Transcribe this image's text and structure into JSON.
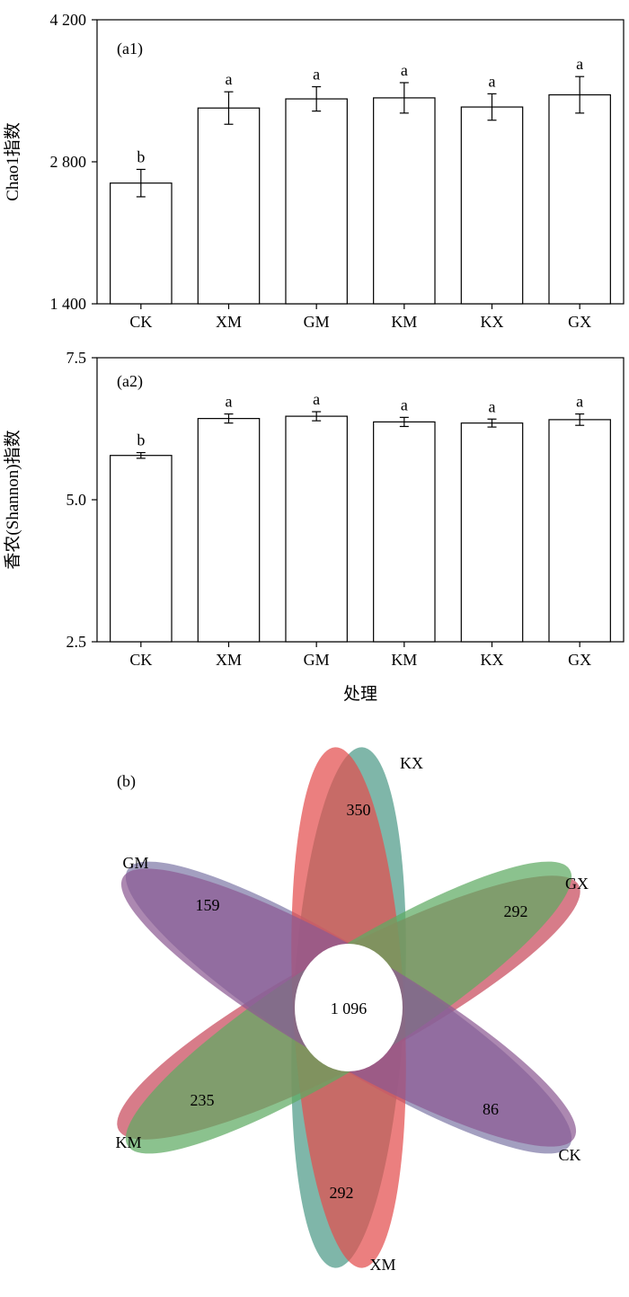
{
  "chart_data": [
    {
      "type": "bar",
      "panel_label": "(a1)",
      "ylabel": "Chao1指数",
      "xlabel": "",
      "categories": [
        "CK",
        "XM",
        "GM",
        "KM",
        "KX",
        "GX"
      ],
      "values": [
        2590,
        3330,
        3420,
        3430,
        3340,
        3460
      ],
      "errors": [
        135,
        160,
        120,
        150,
        130,
        180
      ],
      "significance": [
        "b",
        "a",
        "a",
        "a",
        "a",
        "a"
      ],
      "ylim": [
        1400,
        4200
      ],
      "yticks": [
        1400,
        2800,
        4200
      ],
      "ytick_labels": [
        "1 400",
        "2 800",
        "4 200"
      ],
      "grid": false
    },
    {
      "type": "bar",
      "panel_label": "(a2)",
      "ylabel": "香农(Shannon)指数",
      "xlabel": "处理",
      "categories": [
        "CK",
        "XM",
        "GM",
        "KM",
        "KX",
        "GX"
      ],
      "values": [
        5.78,
        6.43,
        6.47,
        6.37,
        6.35,
        6.41
      ],
      "errors": [
        0.05,
        0.08,
        0.08,
        0.08,
        0.07,
        0.1
      ],
      "significance": [
        "b",
        "a",
        "a",
        "a",
        "a",
        "a"
      ],
      "ylim": [
        2.5,
        7.5
      ],
      "yticks": [
        2.5,
        5.0,
        7.5
      ],
      "ytick_labels": [
        "2.5",
        "5.0",
        "7.5"
      ],
      "grid": false
    },
    {
      "type": "venn",
      "panel_label": "(b)",
      "center_value": "1 096",
      "sets": [
        {
          "name": "KX",
          "unique": "350",
          "color": "#4e9a88"
        },
        {
          "name": "GX",
          "unique": "292",
          "color": "#c84a5c"
        },
        {
          "name": "CK",
          "unique": "86",
          "color": "#7f7aa8"
        },
        {
          "name": "XM",
          "unique": "292",
          "color": "#e34d4d"
        },
        {
          "name": "KM",
          "unique": "235",
          "color": "#5eaa62"
        },
        {
          "name": "GM",
          "unique": "159",
          "color": "#8c5a93"
        }
      ]
    }
  ]
}
